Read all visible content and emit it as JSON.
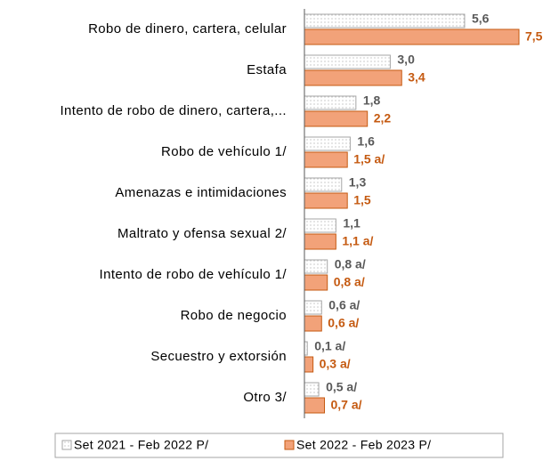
{
  "chart_data": {
    "type": "bar",
    "orientation": "horizontal",
    "categories": [
      "Robo de dinero, cartera, celular",
      "Estafa",
      "Intento de robo de dinero, cartera,...",
      "Robo  de vehículo 1/",
      "Amenazas e intimidaciones",
      "Maltrato y ofensa sexual 2/",
      "Intento de robo de vehículo 1/",
      "Robo de negocio",
      "Secuestro y extorsión",
      "Otro 3/"
    ],
    "series": [
      {
        "name": "Set 2021 - Feb 2022 P/",
        "color": "#a6a6a6",
        "label_color": "#595959",
        "values": [
          5.6,
          3.0,
          1.8,
          1.6,
          1.3,
          1.1,
          0.8,
          0.6,
          0.1,
          0.5
        ],
        "value_labels": [
          "5,6",
          "3,0",
          "1,8",
          "1,6",
          "1,3",
          "1,1",
          "0,8 a/",
          "0,6 a/",
          "0,1 a/",
          "0,5 a/"
        ]
      },
      {
        "name": "Set 2022 - Feb 2023 P/",
        "color": "#f2a279",
        "label_color": "#c55a11",
        "values": [
          7.5,
          3.4,
          2.2,
          1.5,
          1.5,
          1.1,
          0.8,
          0.6,
          0.3,
          0.7
        ],
        "value_labels": [
          "7,5",
          "3,4",
          "2,2",
          "1,5 a/",
          "1,5",
          "1,1 a/",
          "0,8 a/",
          "0,6 a/",
          "0,3 a/",
          "0,7 a/"
        ]
      }
    ],
    "legend": "bottom"
  }
}
